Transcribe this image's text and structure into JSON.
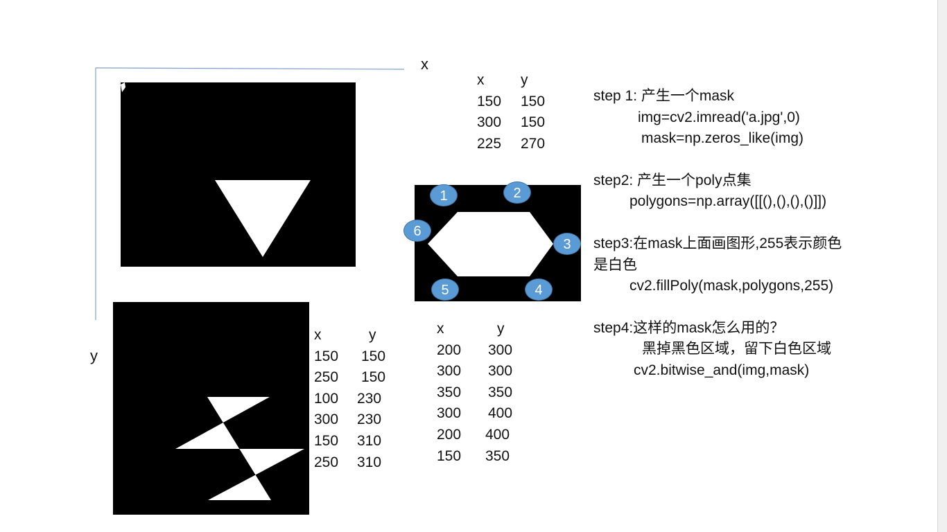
{
  "axes": {
    "x_label": "x",
    "y_label": "y"
  },
  "table_triangle": {
    "headers": [
      "x",
      "y"
    ],
    "rows": [
      [
        "150",
        "150"
      ],
      [
        "300",
        "150"
      ],
      [
        "225",
        "270"
      ]
    ]
  },
  "table_zigzag": {
    "headers": [
      "x",
      "y"
    ],
    "rows": [
      [
        "150",
        "150"
      ],
      [
        "250",
        "150"
      ],
      [
        "100",
        "230"
      ],
      [
        "300",
        "230"
      ],
      [
        "150",
        "310"
      ],
      [
        "250",
        "310"
      ]
    ]
  },
  "table_hexagon": {
    "headers": [
      "x",
      "y"
    ],
    "rows": [
      [
        "200",
        "300"
      ],
      [
        "300",
        "300"
      ],
      [
        "350",
        "350"
      ],
      [
        "300",
        "400"
      ],
      [
        "200",
        "400"
      ],
      [
        "150",
        "350"
      ]
    ]
  },
  "hexagon_badges": [
    "1",
    "2",
    "3",
    "4",
    "5",
    "6"
  ],
  "steps": {
    "step1_title": "step 1: 产生一个mask",
    "step1_code1": "img=cv2.imread('a.jpg',0)",
    "step1_code2": "mask=np.zeros_like(img)",
    "step2_title": "step2: 产生一个poly点集",
    "step2_code": "polygons=np.array([[(),(),(),()]])",
    "step3_title": "step3:在mask上面画图形,255表示颜色是白色",
    "step3_code": "cv2.fillPoly(mask,polygons,255)",
    "step4_title": "step4:这样的mask怎么用的？",
    "step4_desc": "黑掉黑色区域，留下白色区域",
    "step4_code": "cv2.bitwise_and(img,mask)"
  },
  "colors": {
    "badge_fill": "#5b9bd5",
    "axis_line": "#7f9fcf",
    "panel": "#000000",
    "shape": "#ffffff"
  }
}
